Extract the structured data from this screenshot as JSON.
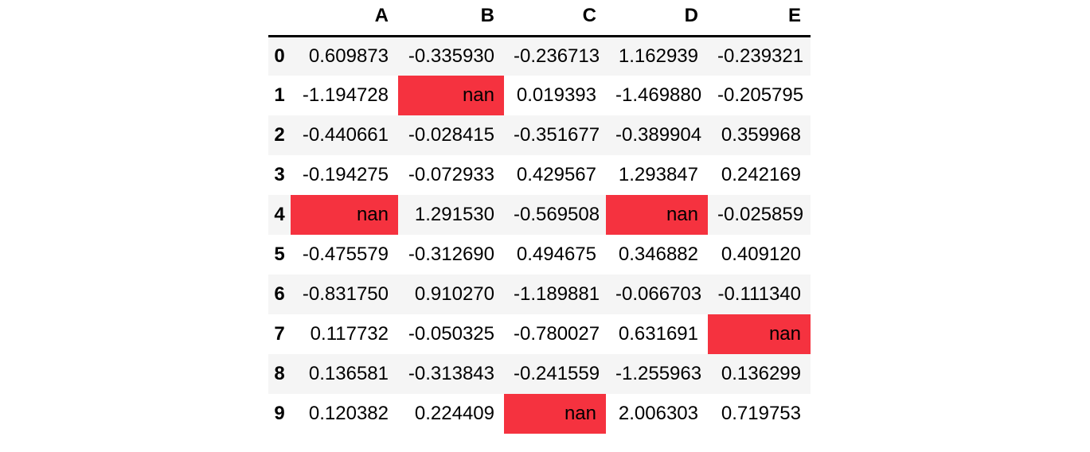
{
  "style": {
    "nan_highlight": "#f5323f",
    "row_stripe": "#f5f5f5",
    "header_rule": "#000000",
    "text_color": "#000000",
    "background": "#ffffff"
  },
  "table": {
    "corner_label": "",
    "nan_label": "nan"
  },
  "chart_data": {
    "type": "table",
    "title": "",
    "columns": [
      "A",
      "B",
      "C",
      "D",
      "E"
    ],
    "index": [
      "0",
      "1",
      "2",
      "3",
      "4",
      "5",
      "6",
      "7",
      "8",
      "9"
    ],
    "rows": [
      [
        "0.609873",
        "-0.335930",
        "-0.236713",
        "1.162939",
        "-0.239321"
      ],
      [
        "-1.194728",
        "nan",
        "0.019393",
        "-1.469880",
        "-0.205795"
      ],
      [
        "-0.440661",
        "-0.028415",
        "-0.351677",
        "-0.389904",
        "0.359968"
      ],
      [
        "-0.194275",
        "-0.072933",
        "0.429567",
        "1.293847",
        "0.242169"
      ],
      [
        "nan",
        "1.291530",
        "-0.569508",
        "nan",
        "-0.025859"
      ],
      [
        "-0.475579",
        "-0.312690",
        "0.494675",
        "0.346882",
        "0.409120"
      ],
      [
        "-0.831750",
        "0.910270",
        "-1.189881",
        "-0.066703",
        "-0.111340"
      ],
      [
        "0.117732",
        "-0.050325",
        "-0.780027",
        "0.631691",
        "nan"
      ],
      [
        "0.136581",
        "-0.313843",
        "-0.241559",
        "-1.255963",
        "0.136299"
      ],
      [
        "0.120382",
        "0.224409",
        "nan",
        "2.006303",
        "0.719753"
      ]
    ],
    "nan_cells": [
      {
        "row": "1",
        "col": "B"
      },
      {
        "row": "4",
        "col": "A"
      },
      {
        "row": "4",
        "col": "D"
      },
      {
        "row": "7",
        "col": "E"
      },
      {
        "row": "9",
        "col": "C"
      }
    ],
    "layout": {
      "row_striping": "odd-rows-gray",
      "header_rule": "solid-black",
      "value_alignment": "right",
      "nan_highlight": "red"
    }
  }
}
